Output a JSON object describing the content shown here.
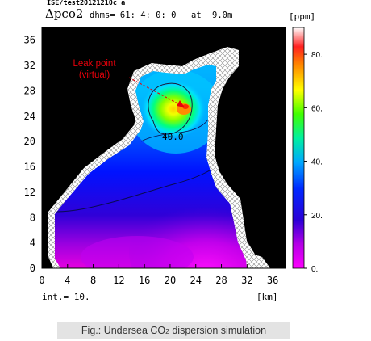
{
  "chart_data": {
    "type": "heatmap",
    "run_id": "ISE/test20121210c_a",
    "variable": "Δpco2",
    "time_label": "dhms= 61: 4: 0: 0",
    "at_label": "at",
    "depth": "9.0m",
    "unit": "[ppm]",
    "x_unit": "[km]",
    "interval_label": "int.= 10.",
    "x_ticks": [
      "0",
      "4",
      "8",
      "12",
      "16",
      "20",
      "24",
      "28",
      "32",
      "36"
    ],
    "y_ticks": [
      "0",
      "4",
      "8",
      "12",
      "16",
      "20",
      "24",
      "28",
      "32",
      "36"
    ],
    "xlim": [
      0,
      38
    ],
    "ylim": [
      0,
      38
    ],
    "colorbar_ticks": [
      "0.",
      "20.",
      "40.",
      "60.",
      "80."
    ],
    "colorbar_range": [
      0,
      90
    ],
    "contour_label": "40.0",
    "max_location_km": [
      23,
      25
    ]
  },
  "annotation": {
    "line1": "Leak point",
    "line2": "(virtual)",
    "color": "#e8000b"
  },
  "caption": {
    "prefix": "Fig.: Undersea CO",
    "subscript": "2",
    "suffix": " dispersion simulation"
  }
}
